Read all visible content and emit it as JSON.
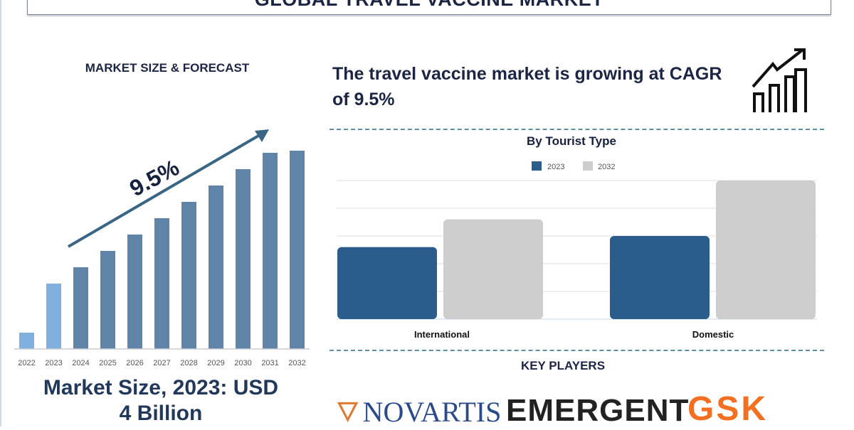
{
  "title": "GLOBAL TRAVEL VACCINE MARKET",
  "left_panel": {
    "heading": "MARKET SIZE & FORECAST",
    "cagr_label": "9.5%",
    "market_size_line1": "Market Size, 2023: USD",
    "market_size_line2": "4 Billion"
  },
  "headline": "The travel vaccine market is growing at CAGR of 9.5%",
  "growth_icon": "bar-chart-rising-arrow-icon",
  "key_players": {
    "heading": "KEY PLAYERS",
    "logos": [
      "NOVARTIS",
      "EMERGENT",
      "GSK"
    ]
  },
  "colors": {
    "navy_text": "#1c2543",
    "bar_historic": "#7fb0de",
    "bar_forecast": "#5f84a8",
    "series_2023": "#2b5d8c",
    "series_2032": "#cdcdcd",
    "novartis": "#2a4a8a",
    "gsk": "#f36f21"
  },
  "chart_data": [
    {
      "type": "bar",
      "title": "",
      "categories": [
        "2022",
        "2023",
        "2024",
        "2025",
        "2026",
        "2027",
        "2028",
        "2029",
        "2030",
        "2031",
        "2032"
      ],
      "values": [
        23,
        92,
        115,
        138,
        161,
        184,
        207,
        230,
        253,
        276,
        279
      ],
      "highlighted_historic": [
        "2022",
        "2023"
      ],
      "annotation": "9.5%",
      "grid": false,
      "y_axis_shown": false
    },
    {
      "type": "bar",
      "title": "By Tourist Type",
      "categories": [
        "International",
        "Domestic"
      ],
      "series": [
        {
          "name": "2023",
          "values": [
            2.6,
            3.0
          ]
        },
        {
          "name": "2032",
          "values": [
            3.6,
            5.0
          ]
        }
      ],
      "ylim": [
        0,
        5
      ],
      "grid": true,
      "legend": "top-center",
      "y_axis_shown": false
    }
  ]
}
